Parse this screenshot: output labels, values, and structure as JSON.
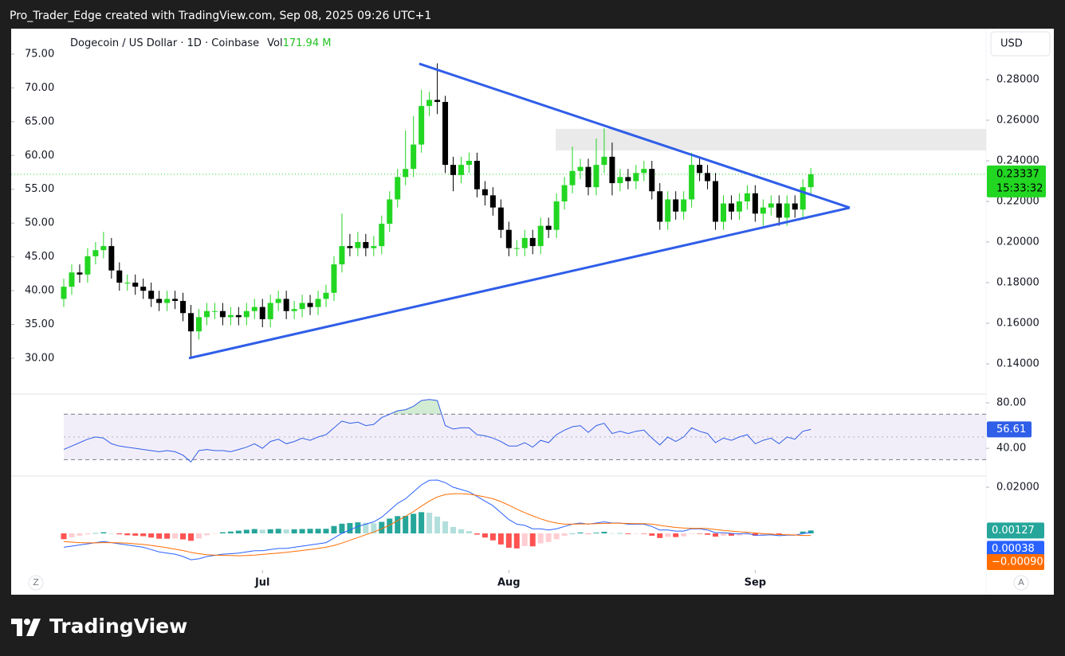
{
  "header": "Pro_Trader_Edge created with TradingView.com, Sep 08, 2025 09:26 UTC+1",
  "brand": "TradingView",
  "buttons": [
    "Z",
    "A"
  ],
  "chart_data": {
    "type": "candlestick",
    "legend": {
      "symbol": "Dogecoin / US Dollar · 1D · Coinbase",
      "vol_label": "Vol",
      "vol": "171.94 M"
    },
    "currency": "USD",
    "up_color": "#22d622",
    "down_color": "#000000",
    "grid": false,
    "xlim": [
      -6.62,
      116.05
    ],
    "xticks": [
      {
        "value": 25,
        "label": "Jul"
      },
      {
        "value": 56,
        "label": "Aug"
      },
      {
        "value": 87,
        "label": "Sep"
      }
    ],
    "ylim": [
      0.1259,
      0.3043
    ],
    "yticks": [
      {
        "value": 0.28,
        "label": "0.28000"
      },
      {
        "value": 0.26,
        "label": "0.26000"
      },
      {
        "value": 0.24,
        "label": "0.24000"
      },
      {
        "value": 0.22,
        "label": "0.22000"
      },
      {
        "value": 0.2,
        "label": "0.20000"
      },
      {
        "value": 0.18,
        "label": "0.18000"
      },
      {
        "value": 0.16,
        "label": "0.16000"
      },
      {
        "value": 0.14,
        "label": "0.14000"
      }
    ],
    "y2lim": [
      24.93,
      78.53
    ],
    "y2ticks": [
      {
        "value": 75,
        "label": "75.00"
      },
      {
        "value": 70,
        "label": "70.00"
      },
      {
        "value": 65,
        "label": "65.00"
      },
      {
        "value": 60,
        "label": "60.00"
      },
      {
        "value": 55,
        "label": "55.00"
      },
      {
        "value": 50,
        "label": "50.00"
      },
      {
        "value": 45,
        "label": "45.00"
      },
      {
        "value": 40,
        "label": "40.00"
      },
      {
        "value": 35,
        "label": "35.00"
      },
      {
        "value": 30,
        "label": "30.00"
      }
    ],
    "open": [
      0.172,
      0.178,
      0.185,
      0.184,
      0.193,
      0.196,
      0.198,
      0.186,
      0.18,
      0.18,
      0.178,
      0.176,
      0.172,
      0.17,
      0.172,
      0.171,
      0.165,
      0.156,
      0.163,
      0.166,
      0.166,
      0.163,
      0.164,
      0.163,
      0.166,
      0.168,
      0.162,
      0.17,
      0.172,
      0.166,
      0.167,
      0.17,
      0.168,
      0.172,
      0.175,
      0.189,
      0.198,
      0.197,
      0.2,
      0.197,
      0.198,
      0.209,
      0.221,
      0.232,
      0.236,
      0.248,
      0.267,
      0.27,
      0.269,
      0.238,
      0.233,
      0.238,
      0.24,
      0.226,
      0.223,
      0.217,
      0.206,
      0.197,
      0.197,
      0.202,
      0.198,
      0.208,
      0.206,
      0.22,
      0.228,
      0.235,
      0.237,
      0.227,
      0.238,
      0.242,
      0.229,
      0.232,
      0.23,
      0.234,
      0.236,
      0.225,
      0.21,
      0.221,
      0.215,
      0.221,
      0.238,
      0.234,
      0.23,
      0.21,
      0.219,
      0.215,
      0.22,
      0.224,
      0.214,
      0.217,
      0.219,
      0.212,
      0.219,
      0.216,
      0.227
    ],
    "high": [
      0.182,
      0.189,
      0.189,
      0.197,
      0.2,
      0.205,
      0.202,
      0.19,
      0.184,
      0.184,
      0.182,
      0.18,
      0.176,
      0.176,
      0.176,
      0.175,
      0.169,
      0.167,
      0.17,
      0.17,
      0.17,
      0.168,
      0.168,
      0.17,
      0.172,
      0.172,
      0.174,
      0.176,
      0.176,
      0.171,
      0.174,
      0.174,
      0.176,
      0.179,
      0.193,
      0.214,
      0.204,
      0.205,
      0.204,
      0.203,
      0.213,
      0.225,
      0.236,
      0.255,
      0.262,
      0.275,
      0.274,
      0.288,
      0.272,
      0.242,
      0.242,
      0.244,
      0.244,
      0.23,
      0.227,
      0.221,
      0.21,
      0.201,
      0.206,
      0.206,
      0.212,
      0.212,
      0.224,
      0.232,
      0.247,
      0.241,
      0.241,
      0.251,
      0.256,
      0.249,
      0.236,
      0.236,
      0.238,
      0.24,
      0.24,
      0.229,
      0.225,
      0.225,
      0.225,
      0.244,
      0.242,
      0.238,
      0.234,
      0.223,
      0.223,
      0.224,
      0.228,
      0.228,
      0.221,
      0.223,
      0.223,
      0.223,
      0.223,
      0.231,
      0.2365
    ],
    "low": [
      0.168,
      0.174,
      0.18,
      0.18,
      0.189,
      0.192,
      0.182,
      0.176,
      0.176,
      0.174,
      0.172,
      0.168,
      0.166,
      0.166,
      0.167,
      0.161,
      0.143,
      0.152,
      0.159,
      0.162,
      0.159,
      0.159,
      0.159,
      0.159,
      0.162,
      0.158,
      0.158,
      0.166,
      0.162,
      0.162,
      0.163,
      0.164,
      0.164,
      0.168,
      0.171,
      0.185,
      0.193,
      0.193,
      0.193,
      0.193,
      0.194,
      0.205,
      0.217,
      0.228,
      0.232,
      0.244,
      0.262,
      0.263,
      0.234,
      0.225,
      0.229,
      0.234,
      0.222,
      0.218,
      0.213,
      0.202,
      0.193,
      0.193,
      0.193,
      0.194,
      0.194,
      0.202,
      0.202,
      0.216,
      0.224,
      0.231,
      0.223,
      0.223,
      0.234,
      0.223,
      0.225,
      0.226,
      0.226,
      0.23,
      0.221,
      0.206,
      0.206,
      0.211,
      0.211,
      0.217,
      0.23,
      0.226,
      0.206,
      0.206,
      0.211,
      0.211,
      0.216,
      0.21,
      0.208,
      0.213,
      0.208,
      0.208,
      0.212,
      0.212,
      0.223
    ],
    "close": [
      0.178,
      0.185,
      0.184,
      0.193,
      0.196,
      0.198,
      0.186,
      0.18,
      0.18,
      0.178,
      0.176,
      0.172,
      0.17,
      0.172,
      0.171,
      0.165,
      0.156,
      0.163,
      0.166,
      0.166,
      0.163,
      0.164,
      0.163,
      0.166,
      0.168,
      0.162,
      0.17,
      0.172,
      0.166,
      0.167,
      0.17,
      0.168,
      0.172,
      0.175,
      0.189,
      0.198,
      0.197,
      0.2,
      0.197,
      0.198,
      0.209,
      0.221,
      0.232,
      0.236,
      0.248,
      0.267,
      0.27,
      0.269,
      0.238,
      0.233,
      0.238,
      0.24,
      0.226,
      0.223,
      0.217,
      0.206,
      0.197,
      0.197,
      0.202,
      0.198,
      0.208,
      0.206,
      0.22,
      0.228,
      0.235,
      0.237,
      0.227,
      0.238,
      0.242,
      0.229,
      0.232,
      0.23,
      0.234,
      0.236,
      0.225,
      0.21,
      0.221,
      0.215,
      0.221,
      0.238,
      0.234,
      0.23,
      0.21,
      0.219,
      0.215,
      0.22,
      0.224,
      0.214,
      0.217,
      0.219,
      0.212,
      0.219,
      0.216,
      0.227,
      0.23337
    ],
    "last_price": {
      "value": 0.23337,
      "label": "0.23337",
      "countdown": "15:33:32",
      "color": "#22d622"
    },
    "trendlines": [
      {
        "color": "#2f5ee8",
        "points": [
          [
            44.73,
            0.2878
          ],
          [
            98.9,
            0.2169
          ]
        ]
      },
      {
        "color": "#2f5ee8",
        "points": [
          [
            15.75,
            0.1428
          ],
          [
            98.9,
            0.2169
          ]
        ]
      }
    ],
    "zone": {
      "color": "#e8e8e8",
      "x": [
        61.9,
        116.05
      ],
      "y": [
        0.2451,
        0.2557
      ]
    },
    "rsi": {
      "ylim": [
        15.6,
        86.3
      ],
      "yticks": [
        {
          "value": 80,
          "label": "80.00"
        },
        {
          "value": 40,
          "label": "40.00"
        }
      ],
      "bands": [
        30,
        50,
        70
      ],
      "color": "#2f5ee8",
      "band_color": "#7e57c2",
      "values": [
        39,
        42,
        45,
        48,
        50,
        49,
        44,
        42,
        41,
        40,
        39,
        38,
        37,
        38,
        37,
        34,
        28,
        38,
        39,
        38,
        38,
        37,
        39,
        41,
        44,
        40,
        46,
        48,
        44,
        46,
        49,
        47,
        50,
        52,
        58,
        64,
        62,
        63,
        60,
        61,
        67,
        70,
        73,
        74,
        77,
        82,
        83,
        82,
        60,
        57,
        58,
        58,
        52,
        51,
        49,
        46,
        42,
        42,
        45,
        41,
        47,
        45,
        52,
        56,
        59,
        60,
        54,
        60,
        62,
        53,
        55,
        53,
        55,
        56,
        49,
        43,
        50,
        46,
        50,
        58,
        55,
        53,
        45,
        49,
        47,
        50,
        52,
        44,
        47,
        49,
        44,
        50,
        48,
        55,
        56.61
      ],
      "last_label": "56.61"
    },
    "macd": {
      "ylim": [
        -0.01448,
        0.02414
      ],
      "yticks": [
        {
          "value": 0.02,
          "label": "0.02000"
        }
      ],
      "macd_color": "#2962ff",
      "signal_color": "#ff6d00",
      "hist_colors": [
        "#26a69a",
        "#b2dfdb",
        "#ff5252",
        "#ffcdd2"
      ],
      "macd": [
        -0.006,
        -0.0055,
        -0.005,
        -0.0045,
        -0.004,
        -0.0035,
        -0.004,
        -0.0045,
        -0.005,
        -0.0055,
        -0.006,
        -0.007,
        -0.008,
        -0.0085,
        -0.009,
        -0.01,
        -0.0114,
        -0.011,
        -0.01,
        -0.0095,
        -0.009,
        -0.0088,
        -0.0085,
        -0.008,
        -0.0075,
        -0.0075,
        -0.007,
        -0.0065,
        -0.0065,
        -0.006,
        -0.0055,
        -0.005,
        -0.0045,
        -0.004,
        -0.002,
        0.0,
        0.0015,
        0.003,
        0.004,
        0.005,
        0.007,
        0.01,
        0.013,
        0.015,
        0.018,
        0.021,
        0.023,
        0.0231,
        0.022,
        0.02,
        0.019,
        0.018,
        0.016,
        0.014,
        0.012,
        0.009,
        0.006,
        0.004,
        0.0035,
        0.002,
        0.002,
        0.0015,
        0.002,
        0.003,
        0.004,
        0.0045,
        0.004,
        0.0045,
        0.005,
        0.0045,
        0.0045,
        0.004,
        0.004,
        0.004,
        0.003,
        0.0015,
        0.0015,
        0.001,
        0.001,
        0.002,
        0.002,
        0.0015,
        0.0003,
        0.0003,
        0.0,
        -0.0002,
        0.0,
        -0.0008,
        -0.0008,
        -0.0006,
        -0.001,
        -0.0008,
        -0.0008,
        -0.0001,
        0.00038
      ],
      "signal": [
        -0.0035,
        -0.0038,
        -0.004,
        -0.0041,
        -0.0041,
        -0.004,
        -0.004,
        -0.0041,
        -0.0042,
        -0.0045,
        -0.0048,
        -0.0052,
        -0.0057,
        -0.0062,
        -0.0068,
        -0.0074,
        -0.0082,
        -0.0088,
        -0.0092,
        -0.0094,
        -0.0095,
        -0.0096,
        -0.0097,
        -0.0096,
        -0.0094,
        -0.0091,
        -0.0088,
        -0.0085,
        -0.0082,
        -0.0078,
        -0.0074,
        -0.007,
        -0.0065,
        -0.006,
        -0.0052,
        -0.0042,
        -0.003,
        -0.0018,
        -0.0006,
        0.0006,
        0.002,
        0.0036,
        0.0055,
        0.0074,
        0.0095,
        0.0118,
        0.014,
        0.0158,
        0.0168,
        0.0172,
        0.0172,
        0.017,
        0.0165,
        0.0158,
        0.015,
        0.0138,
        0.0122,
        0.0105,
        0.009,
        0.0076,
        0.0063,
        0.0052,
        0.0045,
        0.004,
        0.004,
        0.0041,
        0.0041,
        0.0042,
        0.0043,
        0.0044,
        0.0044,
        0.0043,
        0.0042,
        0.0042,
        0.004,
        0.0035,
        0.003,
        0.0026,
        0.0023,
        0.0022,
        0.0022,
        0.0021,
        0.0017,
        0.0013,
        0.001,
        0.0007,
        0.0005,
        0.0002,
        -0.0001,
        -0.0003,
        -0.0005,
        -0.0006,
        -0.0007,
        -0.0009,
        -0.0009
      ],
      "hist": [
        -0.0025,
        -0.0017,
        -0.001,
        -0.0004,
        0.0001,
        0.0005,
        0,
        -0.0004,
        -0.0008,
        -0.001,
        -0.0012,
        -0.0018,
        -0.0023,
        -0.0023,
        -0.0022,
        -0.0026,
        -0.0032,
        -0.0022,
        -0.0008,
        -0.0001,
        0.0005,
        0.0008,
        0.0012,
        0.0016,
        0.0019,
        0.0016,
        0.0018,
        0.002,
        0.0017,
        0.0018,
        0.0019,
        0.002,
        0.002,
        0.002,
        0.0032,
        0.0042,
        0.0045,
        0.0048,
        0.0046,
        0.0044,
        0.005,
        0.0064,
        0.0075,
        0.0076,
        0.0085,
        0.0092,
        0.009,
        0.0073,
        0.0052,
        0.0028,
        0.0018,
        0.001,
        -0.0005,
        -0.0018,
        -0.003,
        -0.0048,
        -0.0062,
        -0.0065,
        -0.0055,
        -0.0056,
        -0.0043,
        -0.0037,
        -0.0025,
        -0.001,
        0,
        0.0004,
        -0.0001,
        0.0003,
        0.0007,
        0.0001,
        0.0001,
        -0.0003,
        -0.0002,
        -0.0002,
        -0.001,
        -0.002,
        -0.0015,
        -0.0016,
        -0.0013,
        -0.0002,
        -0.0002,
        -0.0006,
        -0.0014,
        -0.001,
        -0.001,
        -0.0009,
        -0.0005,
        -0.001,
        -0.0007,
        -0.0003,
        -0.0005,
        -0.0002,
        -0.0001,
        0.0008,
        0.00127
      ],
      "labels": {
        "hist": "0.00127",
        "macd": "0.00038",
        "signal": "−0.00090"
      }
    }
  }
}
